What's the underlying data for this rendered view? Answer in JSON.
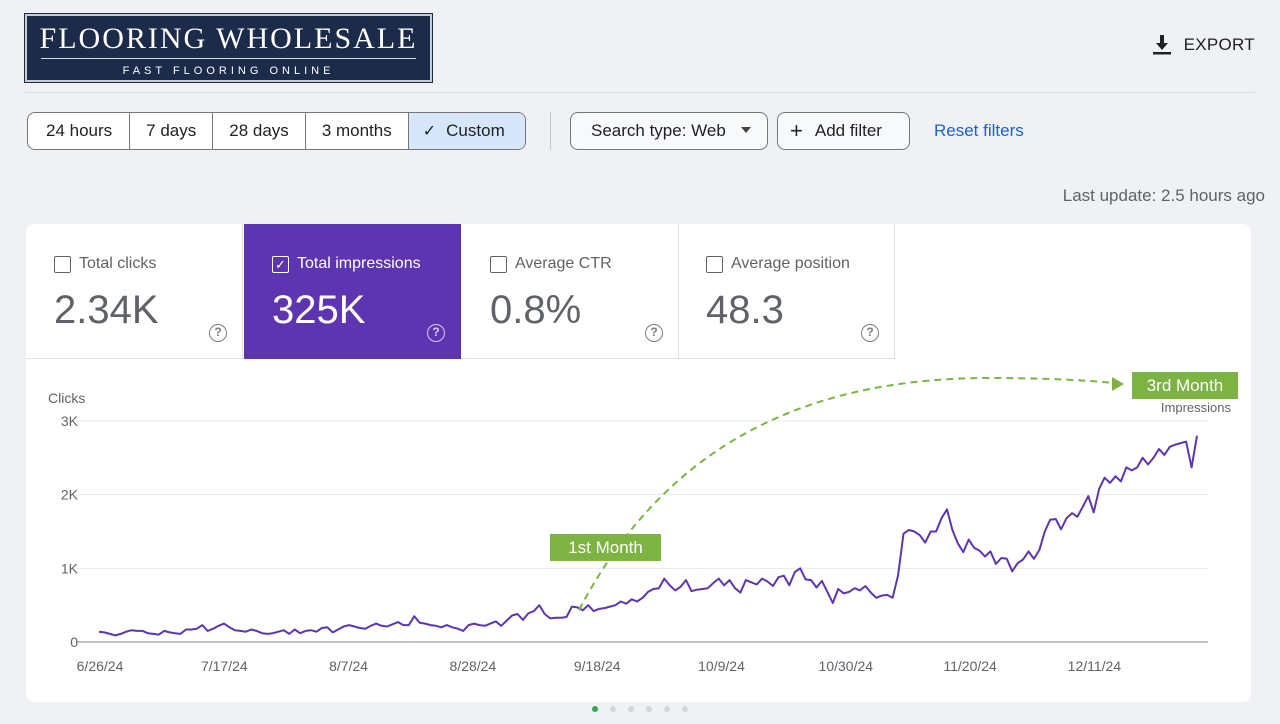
{
  "brand": {
    "name": "FLOORING WHOLESALE",
    "tagline": "FAST FLOORING ONLINE"
  },
  "toolbar": {
    "export_label": "EXPORT",
    "date_ranges": [
      "24 hours",
      "7 days",
      "28 days",
      "3 months"
    ],
    "active_range": "Custom",
    "search_type": "Search type: Web",
    "add_filter": "Add filter",
    "reset_filters": "Reset filters",
    "last_update": "Last update: 2.5 hours ago"
  },
  "metrics": [
    {
      "label": "Total clicks",
      "value": "2.34K",
      "checked": false
    },
    {
      "label": "Total impressions",
      "value": "325K",
      "checked": true
    },
    {
      "label": "Average CTR",
      "value": "0.8%",
      "checked": false
    },
    {
      "label": "Average position",
      "value": "48.3",
      "checked": false
    }
  ],
  "colors": {
    "accent": "#5e35b1",
    "annotation": "#7cb342",
    "link": "#1a63c9"
  },
  "chart_data": {
    "type": "line",
    "ylabel": "Clicks",
    "series_label": "Impressions",
    "ylim": [
      0,
      3000
    ],
    "yticks": [
      "3K",
      "2K",
      "1K",
      "0"
    ],
    "ytick_values": [
      3000,
      2000,
      1000,
      0
    ],
    "xticks": [
      "6/26/24",
      "7/17/24",
      "8/7/24",
      "8/28/24",
      "9/18/24",
      "10/9/24",
      "10/30/24",
      "11/20/24",
      "12/11/24"
    ],
    "annotations": [
      "1st Month",
      "3rd Month"
    ],
    "x_start_label": "6/26/24",
    "series": [
      {
        "name": "Impressions",
        "values": [
          140,
          130,
          110,
          90,
          110,
          140,
          160,
          150,
          150,
          120,
          110,
          100,
          150,
          130,
          120,
          110,
          170,
          170,
          180,
          230,
          150,
          180,
          220,
          250,
          200,
          160,
          150,
          140,
          170,
          150,
          120,
          110,
          120,
          140,
          160,
          110,
          170,
          120,
          150,
          160,
          140,
          190,
          200,
          130,
          170,
          210,
          230,
          210,
          190,
          180,
          220,
          250,
          220,
          210,
          240,
          270,
          230,
          230,
          350,
          260,
          250,
          230,
          220,
          200,
          230,
          200,
          180,
          150,
          230,
          250,
          230,
          220,
          250,
          280,
          220,
          290,
          360,
          380,
          300,
          390,
          420,
          500,
          380,
          320,
          330,
          330,
          340,
          480,
          470,
          430,
          500,
          420,
          450,
          460,
          480,
          500,
          550,
          520,
          580,
          550,
          600,
          680,
          720,
          730,
          860,
          770,
          700,
          750,
          840,
          690,
          710,
          720,
          730,
          800,
          860,
          770,
          840,
          730,
          670,
          840,
          810,
          780,
          860,
          820,
          760,
          880,
          900,
          770,
          950,
          1000,
          850,
          840,
          740,
          830,
          680,
          530,
          720,
          660,
          680,
          730,
          700,
          760,
          670,
          600,
          630,
          640,
          600,
          900,
          1470,
          1520,
          1500,
          1450,
          1350,
          1500,
          1500,
          1680,
          1800,
          1520,
          1340,
          1220,
          1390,
          1280,
          1240,
          1160,
          1230,
          1060,
          1140,
          1130,
          960,
          1070,
          1120,
          1230,
          1130,
          1250,
          1500,
          1660,
          1670,
          1530,
          1680,
          1750,
          1700,
          1840,
          1980,
          1760,
          2080,
          2230,
          2160,
          2250,
          2180,
          2370,
          2330,
          2370,
          2500,
          2410,
          2500,
          2620,
          2540,
          2650,
          2680,
          2700,
          2720,
          2370,
          2800
        ]
      }
    ]
  }
}
